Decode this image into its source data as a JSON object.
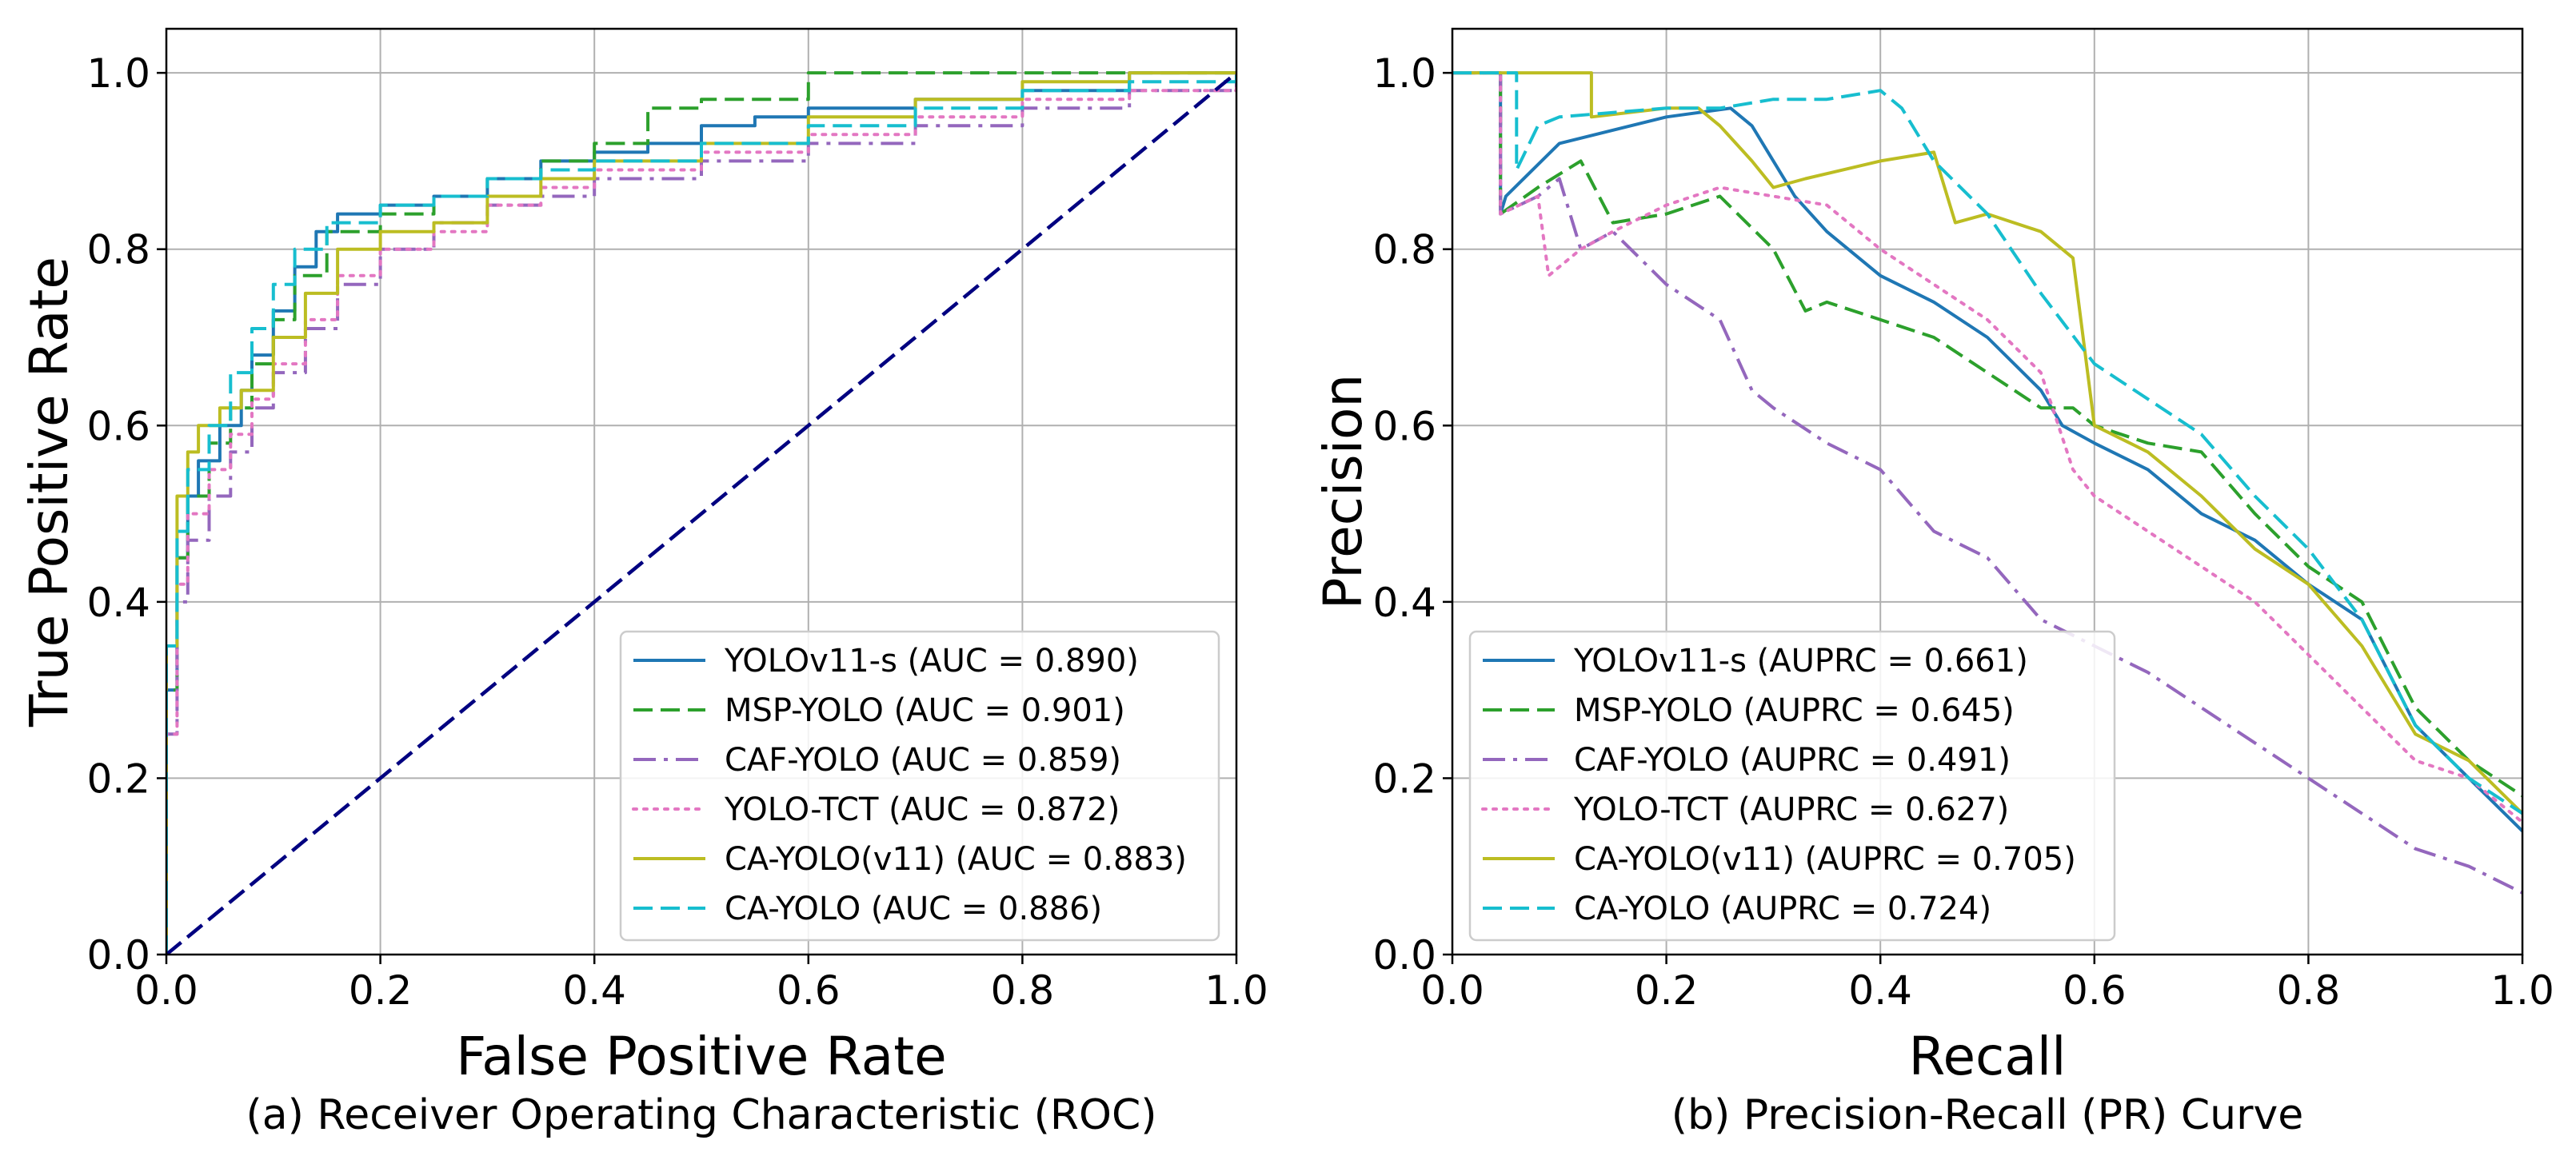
{
  "chart_data": [
    {
      "type": "line",
      "caption": "(a) Receiver Operating Characteristic (ROC)",
      "xlabel": "False Positive Rate",
      "ylabel": "True Positive Rate",
      "xlim": [
        0.0,
        1.0
      ],
      "ylim": [
        0.0,
        1.05
      ],
      "xticks": [
        "0.0",
        "0.2",
        "0.4",
        "0.6",
        "0.8",
        "1.0"
      ],
      "yticks": [
        "0.0",
        "0.2",
        "0.4",
        "0.6",
        "0.8",
        "1.0"
      ],
      "grid": true,
      "legend_position": "lower-right",
      "series": [
        {
          "name": "YOLOv11-s (AUC = 0.890)",
          "color": "#1f77b4",
          "style": "solid",
          "step": true,
          "x": [
            0,
            0,
            0.01,
            0.02,
            0.03,
            0.05,
            0.07,
            0.08,
            0.1,
            0.12,
            0.14,
            0.16,
            0.2,
            0.25,
            0.3,
            0.35,
            0.4,
            0.45,
            0.5,
            0.55,
            0.6,
            0.7,
            0.8,
            0.9,
            1.0
          ],
          "y": [
            0,
            0.3,
            0.45,
            0.52,
            0.56,
            0.6,
            0.64,
            0.68,
            0.73,
            0.78,
            0.82,
            0.84,
            0.85,
            0.86,
            0.88,
            0.9,
            0.91,
            0.92,
            0.94,
            0.95,
            0.96,
            0.97,
            0.98,
            1.0,
            1.0
          ]
        },
        {
          "name": "MSP-YOLO (AUC = 0.901)",
          "color": "#2ca02c",
          "style": "dashed",
          "step": true,
          "x": [
            0,
            0,
            0.01,
            0.02,
            0.04,
            0.06,
            0.08,
            0.1,
            0.12,
            0.15,
            0.2,
            0.25,
            0.3,
            0.35,
            0.4,
            0.45,
            0.5,
            0.6,
            0.65,
            0.9,
            1.0
          ],
          "y": [
            0,
            0.3,
            0.45,
            0.52,
            0.58,
            0.62,
            0.67,
            0.72,
            0.77,
            0.82,
            0.84,
            0.86,
            0.88,
            0.9,
            0.92,
            0.96,
            0.97,
            1.0,
            1.0,
            1.0,
            1.0
          ]
        },
        {
          "name": "CAF-YOLO (AUC = 0.859)",
          "color": "#9467bd",
          "style": "dashdot",
          "step": true,
          "x": [
            0,
            0,
            0.01,
            0.02,
            0.04,
            0.06,
            0.08,
            0.1,
            0.13,
            0.16,
            0.2,
            0.25,
            0.3,
            0.35,
            0.4,
            0.5,
            0.6,
            0.7,
            0.8,
            0.9,
            1.0
          ],
          "y": [
            0,
            0.25,
            0.4,
            0.47,
            0.52,
            0.57,
            0.62,
            0.66,
            0.71,
            0.76,
            0.8,
            0.83,
            0.85,
            0.86,
            0.88,
            0.9,
            0.92,
            0.94,
            0.96,
            0.98,
            1.0
          ]
        },
        {
          "name": "YOLO-TCT (AUC = 0.872)",
          "color": "#e377c2",
          "style": "dotted",
          "step": true,
          "x": [
            0,
            0,
            0.01,
            0.02,
            0.04,
            0.06,
            0.08,
            0.1,
            0.13,
            0.16,
            0.2,
            0.25,
            0.3,
            0.35,
            0.4,
            0.5,
            0.6,
            0.7,
            0.8,
            0.9,
            1.0
          ],
          "y": [
            0,
            0.25,
            0.42,
            0.5,
            0.55,
            0.59,
            0.63,
            0.67,
            0.72,
            0.77,
            0.8,
            0.82,
            0.85,
            0.87,
            0.89,
            0.91,
            0.93,
            0.95,
            0.97,
            0.98,
            1.0
          ]
        },
        {
          "name": "CA-YOLO(v11) (AUC = 0.883)",
          "color": "#bcbd22",
          "style": "solid",
          "step": true,
          "x": [
            0,
            0,
            0.01,
            0.02,
            0.03,
            0.05,
            0.07,
            0.1,
            0.13,
            0.16,
            0.2,
            0.25,
            0.3,
            0.35,
            0.4,
            0.5,
            0.6,
            0.7,
            0.8,
            0.9,
            1.0
          ],
          "y": [
            0,
            0.35,
            0.52,
            0.57,
            0.6,
            0.62,
            0.64,
            0.7,
            0.75,
            0.8,
            0.82,
            0.83,
            0.86,
            0.88,
            0.9,
            0.92,
            0.95,
            0.97,
            0.99,
            1.0,
            1.0
          ]
        },
        {
          "name": "CA-YOLO (AUC = 0.886)",
          "color": "#17becf",
          "style": "dashed",
          "step": true,
          "x": [
            0,
            0,
            0.01,
            0.02,
            0.04,
            0.06,
            0.08,
            0.1,
            0.12,
            0.15,
            0.2,
            0.25,
            0.3,
            0.35,
            0.4,
            0.5,
            0.6,
            0.7,
            0.8,
            0.9,
            1.0
          ],
          "y": [
            0,
            0.35,
            0.48,
            0.55,
            0.6,
            0.66,
            0.71,
            0.76,
            0.8,
            0.83,
            0.85,
            0.86,
            0.88,
            0.89,
            0.9,
            0.92,
            0.94,
            0.96,
            0.98,
            0.99,
            1.0
          ]
        },
        {
          "name": "",
          "color": "#000080",
          "style": "dashed",
          "step": false,
          "x": [
            0,
            1
          ],
          "y": [
            0,
            1
          ]
        }
      ]
    },
    {
      "type": "line",
      "caption": "(b) Precision-Recall (PR) Curve",
      "xlabel": "Recall",
      "ylabel": "Precision",
      "xlim": [
        0.0,
        1.0
      ],
      "ylim": [
        0.0,
        1.05
      ],
      "xticks": [
        "0.0",
        "0.2",
        "0.4",
        "0.6",
        "0.8",
        "1.0"
      ],
      "yticks": [
        "0.0",
        "0.2",
        "0.4",
        "0.6",
        "0.8",
        "1.0"
      ],
      "grid": true,
      "legend_position": "lower-left",
      "series": [
        {
          "name": "YOLOv11-s (AUPRC = 0.661)",
          "color": "#1f77b4",
          "style": "solid",
          "step": false,
          "x": [
            0,
            0.045,
            0.045,
            0.05,
            0.1,
            0.2,
            0.26,
            0.28,
            0.3,
            0.32,
            0.35,
            0.4,
            0.45,
            0.5,
            0.55,
            0.57,
            0.6,
            0.65,
            0.7,
            0.75,
            0.8,
            0.85,
            0.9,
            0.95,
            1.0
          ],
          "y": [
            1.0,
            1.0,
            0.84,
            0.86,
            0.92,
            0.95,
            0.96,
            0.94,
            0.9,
            0.86,
            0.82,
            0.77,
            0.74,
            0.7,
            0.64,
            0.6,
            0.58,
            0.55,
            0.5,
            0.47,
            0.42,
            0.38,
            0.26,
            0.2,
            0.14
          ]
        },
        {
          "name": "MSP-YOLO (AUPRC = 0.645)",
          "color": "#2ca02c",
          "style": "dashed",
          "step": false,
          "x": [
            0,
            0.045,
            0.045,
            0.08,
            0.12,
            0.15,
            0.2,
            0.25,
            0.3,
            0.33,
            0.35,
            0.4,
            0.45,
            0.5,
            0.55,
            0.58,
            0.6,
            0.65,
            0.7,
            0.75,
            0.8,
            0.85,
            0.9,
            0.95,
            1.0
          ],
          "y": [
            1.0,
            1.0,
            0.84,
            0.87,
            0.9,
            0.83,
            0.84,
            0.86,
            0.8,
            0.73,
            0.74,
            0.72,
            0.7,
            0.66,
            0.62,
            0.62,
            0.6,
            0.58,
            0.57,
            0.5,
            0.44,
            0.4,
            0.28,
            0.22,
            0.18
          ]
        },
        {
          "name": "CAF-YOLO (AUPRC = 0.491)",
          "color": "#9467bd",
          "style": "dashdot",
          "step": false,
          "x": [
            0,
            0.045,
            0.045,
            0.08,
            0.1,
            0.12,
            0.15,
            0.2,
            0.25,
            0.28,
            0.3,
            0.35,
            0.4,
            0.45,
            0.5,
            0.55,
            0.6,
            0.65,
            0.7,
            0.75,
            0.8,
            0.85,
            0.9,
            0.95,
            1.0
          ],
          "y": [
            1.0,
            1.0,
            0.84,
            0.86,
            0.88,
            0.8,
            0.82,
            0.76,
            0.72,
            0.64,
            0.62,
            0.58,
            0.55,
            0.48,
            0.45,
            0.38,
            0.35,
            0.32,
            0.28,
            0.24,
            0.2,
            0.16,
            0.12,
            0.1,
            0.07
          ]
        },
        {
          "name": "YOLO-TCT (AUPRC = 0.627)",
          "color": "#e377c2",
          "style": "dotted",
          "step": false,
          "x": [
            0,
            0.045,
            0.045,
            0.08,
            0.09,
            0.12,
            0.15,
            0.2,
            0.25,
            0.3,
            0.35,
            0.4,
            0.45,
            0.5,
            0.55,
            0.58,
            0.6,
            0.65,
            0.7,
            0.75,
            0.8,
            0.85,
            0.9,
            0.95,
            1.0
          ],
          "y": [
            1.0,
            1.0,
            0.84,
            0.86,
            0.77,
            0.8,
            0.82,
            0.85,
            0.87,
            0.86,
            0.85,
            0.8,
            0.76,
            0.72,
            0.66,
            0.55,
            0.52,
            0.48,
            0.44,
            0.4,
            0.34,
            0.28,
            0.22,
            0.2,
            0.15
          ]
        },
        {
          "name": "CA-YOLO(v11) (AUPRC = 0.705)",
          "color": "#bcbd22",
          "style": "solid",
          "step": false,
          "x": [
            0,
            0.13,
            0.13,
            0.2,
            0.23,
            0.25,
            0.28,
            0.3,
            0.33,
            0.4,
            0.45,
            0.47,
            0.5,
            0.55,
            0.58,
            0.6,
            0.65,
            0.7,
            0.75,
            0.8,
            0.85,
            0.9,
            0.95,
            1.0
          ],
          "y": [
            1.0,
            1.0,
            0.95,
            0.96,
            0.96,
            0.94,
            0.9,
            0.87,
            0.88,
            0.9,
            0.91,
            0.83,
            0.84,
            0.82,
            0.79,
            0.6,
            0.57,
            0.52,
            0.46,
            0.42,
            0.35,
            0.25,
            0.22,
            0.16
          ]
        },
        {
          "name": "CA-YOLO (AUPRC = 0.724)",
          "color": "#17becf",
          "style": "dashed",
          "step": false,
          "x": [
            0,
            0.06,
            0.06,
            0.08,
            0.1,
            0.2,
            0.25,
            0.3,
            0.35,
            0.4,
            0.42,
            0.45,
            0.5,
            0.55,
            0.6,
            0.65,
            0.7,
            0.75,
            0.8,
            0.85,
            0.9,
            0.95,
            1.0
          ],
          "y": [
            1.0,
            1.0,
            0.89,
            0.94,
            0.95,
            0.96,
            0.96,
            0.97,
            0.97,
            0.98,
            0.96,
            0.9,
            0.84,
            0.75,
            0.67,
            0.63,
            0.59,
            0.52,
            0.46,
            0.38,
            0.26,
            0.2,
            0.16
          ]
        }
      ]
    }
  ]
}
